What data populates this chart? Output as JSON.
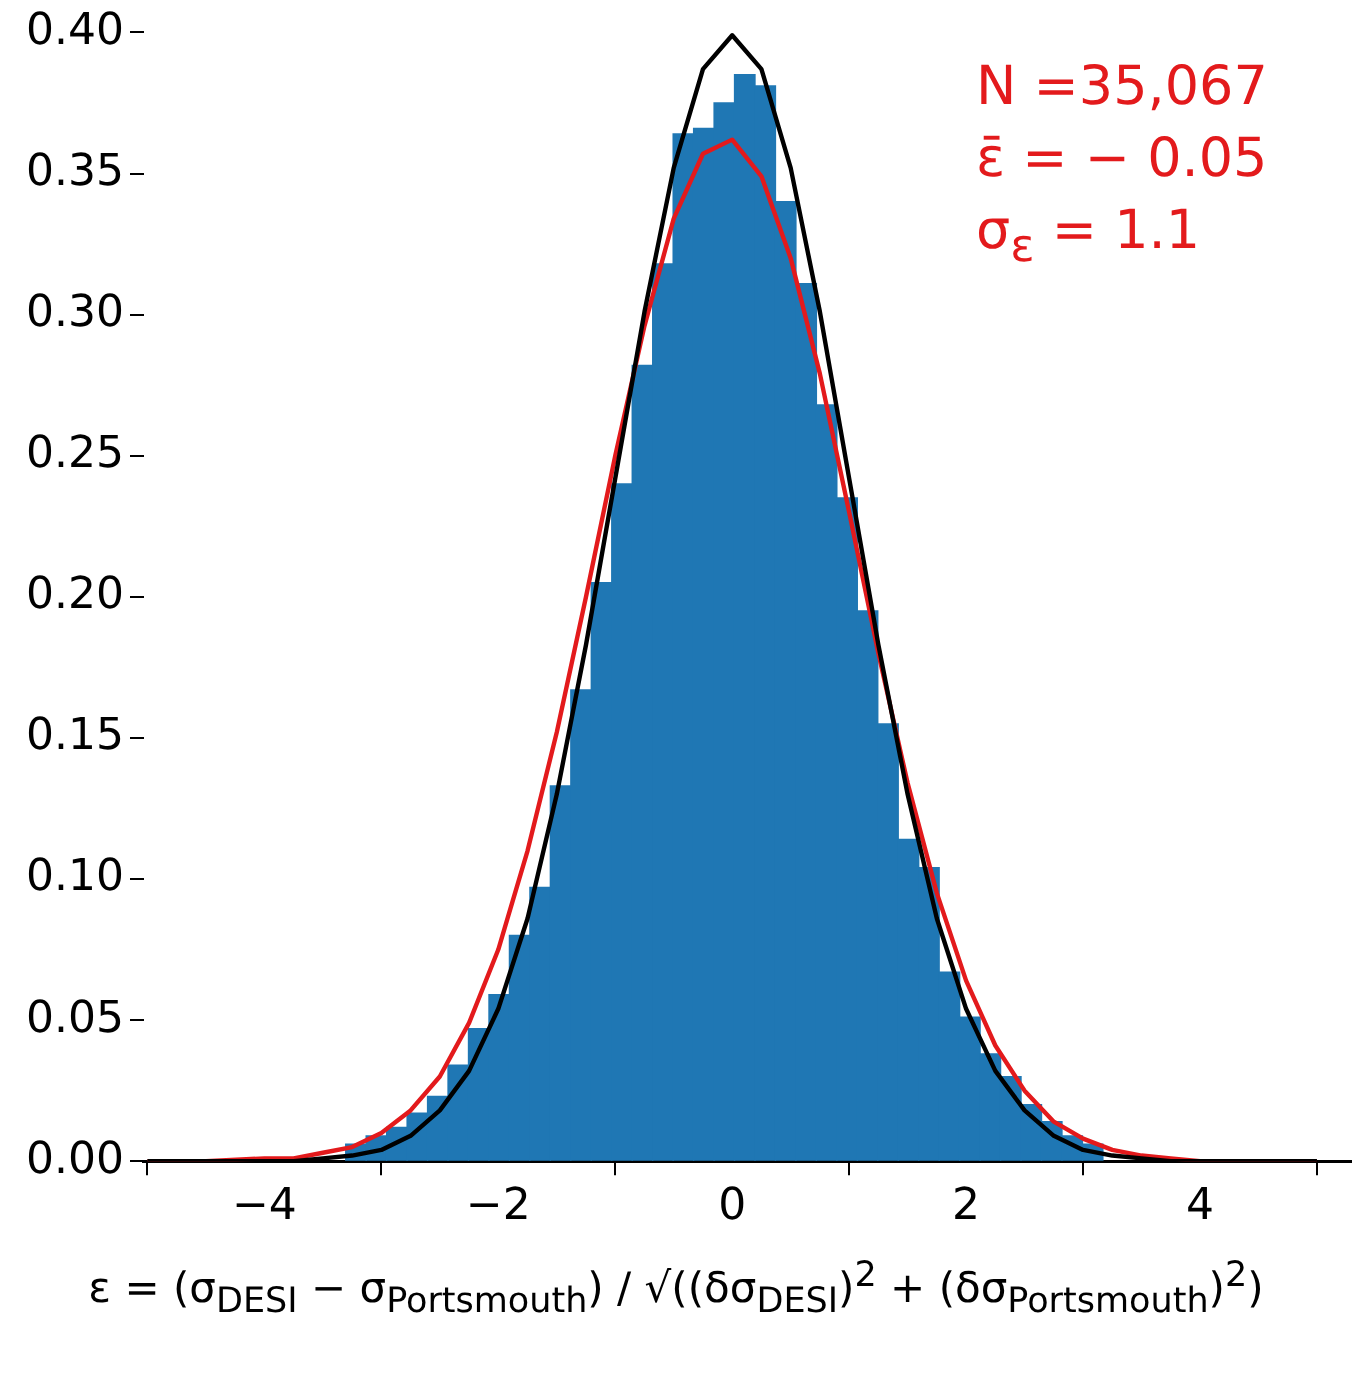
{
  "chart_data": {
    "type": "histogram",
    "xlabel": "ε = (σ$_{DESI}$ − σ$_{Portsmouth}$) / √((δσ$_{DESI}$)$^{2}$ + (δσ$_{Portsmouth}$)$^{2}$)",
    "annotations": [
      "N =35,067",
      "ε̄ = − 0.05",
      "σ$_{ε}$ = 1.1"
    ],
    "series": [
      {
        "color": "#1f77b4",
        "bins": [
          -3.48,
          -3.305,
          -3.13,
          -2.955,
          -2.78,
          -2.605,
          -2.43,
          -2.255,
          -2.08,
          -1.905,
          -1.73,
          -1.555,
          -1.38,
          -1.205,
          -1.03,
          -0.855,
          -0.68,
          -0.505,
          -0.33,
          -0.155,
          0.02,
          0.195,
          0.37,
          0.545,
          0.72,
          0.895,
          1.07,
          1.245,
          1.42,
          1.595,
          1.77,
          1.945,
          2.12,
          2.295,
          2.47,
          2.645,
          2.82,
          2.995,
          3.17,
          3.345,
          3.52
        ],
        "values": [
          null,
          0.006,
          0.009,
          0.012,
          0.017,
          0.023,
          0.034,
          0.047,
          0.059,
          0.08,
          0.097,
          0.133,
          0.167,
          0.205,
          0.24,
          0.282,
          0.318,
          0.364,
          0.366,
          0.375,
          0.385,
          0.381,
          0.34,
          0.311,
          0.268,
          0.235,
          0.195,
          0.155,
          0.114,
          0.104,
          0.067,
          0.051,
          0.038,
          0.03,
          0.02,
          0.014,
          0.009,
          0.006,
          null,
          null
        ]
      },
      {
        "type": "line",
        "color": "#000000",
        "x": [
          -5,
          -4.5,
          -4,
          -3.75,
          -3.5,
          -3.25,
          -3,
          -2.75,
          -2.5,
          -2.25,
          -2,
          -1.75,
          -1.5,
          -1.25,
          -1,
          -0.75,
          -0.5,
          -0.25,
          0,
          0.25,
          0.5,
          0.75,
          1,
          1.25,
          1.5,
          1.75,
          2,
          2.25,
          2.5,
          2.75,
          3,
          3.25,
          3.5,
          3.75,
          4,
          4.5,
          5
        ],
        "values": [
          0,
          0,
          0,
          0,
          0.001,
          0.002,
          0.004,
          0.009,
          0.018,
          0.032,
          0.054,
          0.086,
          0.13,
          0.183,
          0.242,
          0.301,
          0.352,
          0.387,
          0.399,
          0.387,
          0.352,
          0.301,
          0.242,
          0.183,
          0.13,
          0.086,
          0.054,
          0.032,
          0.018,
          0.009,
          0.004,
          0.002,
          0.001,
          0,
          0,
          0,
          0
        ]
      },
      {
        "type": "line",
        "color": "#e31a1c",
        "x": [
          -5,
          -4.5,
          -4,
          -3.75,
          -3.5,
          -3.25,
          -3,
          -2.75,
          -2.5,
          -2.25,
          -2,
          -1.75,
          -1.5,
          -1.25,
          -1,
          -0.75,
          -0.5,
          -0.25,
          0,
          0.25,
          0.5,
          0.75,
          1,
          1.25,
          1.5,
          1.75,
          2,
          2.25,
          2.5,
          2.75,
          3,
          3.25,
          3.5,
          3.75,
          4,
          4.5,
          5
        ],
        "values": [
          0,
          0,
          0.001,
          0.001,
          0.003,
          0.005,
          0.01,
          0.018,
          0.03,
          0.049,
          0.075,
          0.11,
          0.152,
          0.2,
          0.25,
          0.296,
          0.334,
          0.357,
          0.362,
          0.349,
          0.32,
          0.279,
          0.23,
          0.18,
          0.134,
          0.095,
          0.064,
          0.041,
          0.025,
          0.014,
          0.008,
          0.004,
          0.002,
          0.001,
          0,
          0,
          0
        ]
      }
    ],
    "xlim": [
      -5.03,
      5.3
    ],
    "xticks": [
      {
        "value": -4,
        "label": "−4"
      },
      {
        "value": -2,
        "label": "−2"
      },
      0,
      2,
      4
    ],
    "ylim": [
      0,
      0.4
    ],
    "yticks": [
      {
        "value": 0,
        "label": "0.00"
      },
      0.05,
      {
        "value": 0.1,
        "label": "0.10"
      },
      0.15,
      {
        "value": 0.2,
        "label": "0.20"
      },
      0.25,
      {
        "value": 0.3,
        "label": "0.30"
      },
      0.35,
      {
        "value": 0.4,
        "label": "0.40"
      }
    ],
    "grid": false,
    "legend": false,
    "marker": "none",
    "line_style": "solid"
  }
}
